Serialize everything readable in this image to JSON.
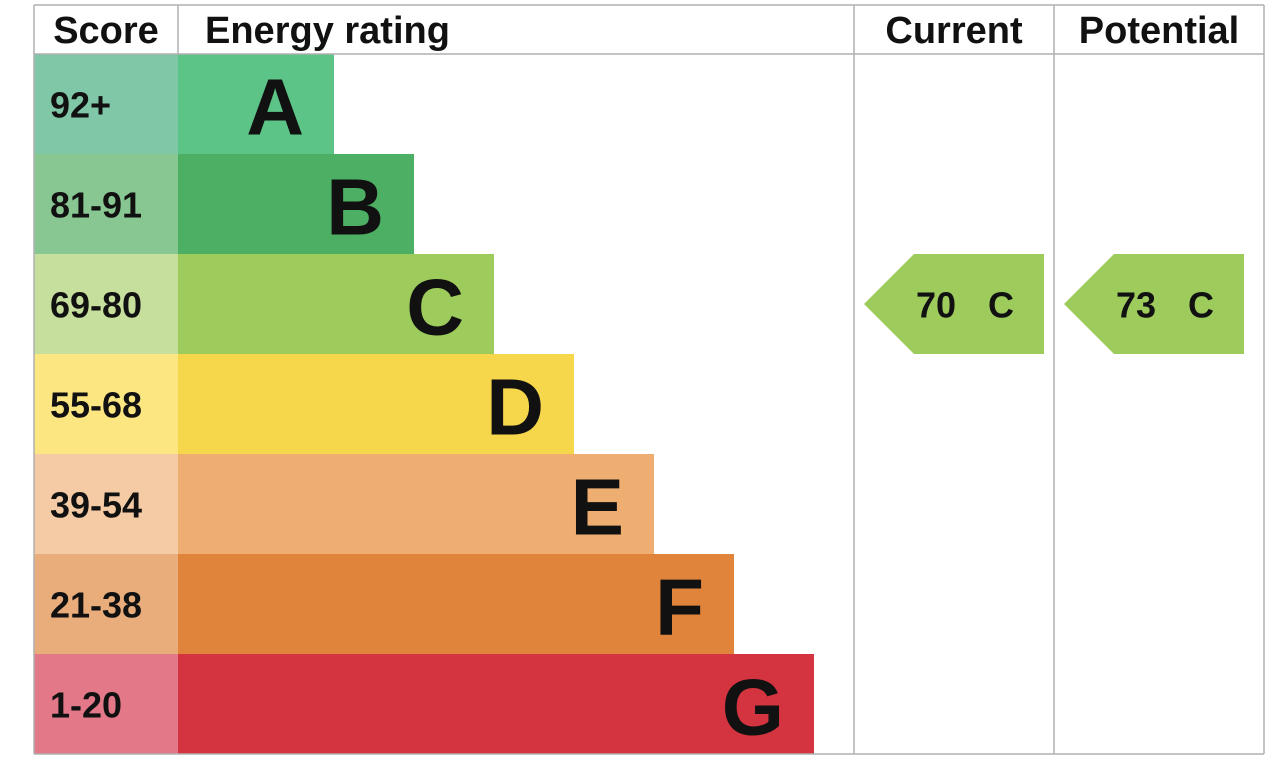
{
  "chart_data": {
    "type": "epc",
    "headers": {
      "score": "Score",
      "rating": "Energy rating",
      "current": "Current",
      "potential": "Potential"
    },
    "bands": [
      {
        "score": "92+",
        "letter": "A",
        "color": "#5bc486",
        "score_color": "#80c7a7"
      },
      {
        "score": "81-91",
        "letter": "B",
        "color": "#4caf63",
        "score_color": "#88c791"
      },
      {
        "score": "69-80",
        "letter": "C",
        "color": "#9dcb5c",
        "score_color": "#c6df9d"
      },
      {
        "score": "55-68",
        "letter": "D",
        "color": "#f6d64b",
        "score_color": "#fbe681"
      },
      {
        "score": "39-54",
        "letter": "E",
        "color": "#efae71",
        "score_color": "#f5cba5"
      },
      {
        "score": "21-38",
        "letter": "F",
        "color": "#e0843b",
        "score_color": "#e8ad7b"
      },
      {
        "score": "1-20",
        "letter": "G",
        "color": "#d4343f",
        "score_color": "#e37889"
      }
    ],
    "current": {
      "value": 70,
      "letter": "C"
    },
    "potential": {
      "value": 73,
      "letter": "C"
    }
  }
}
